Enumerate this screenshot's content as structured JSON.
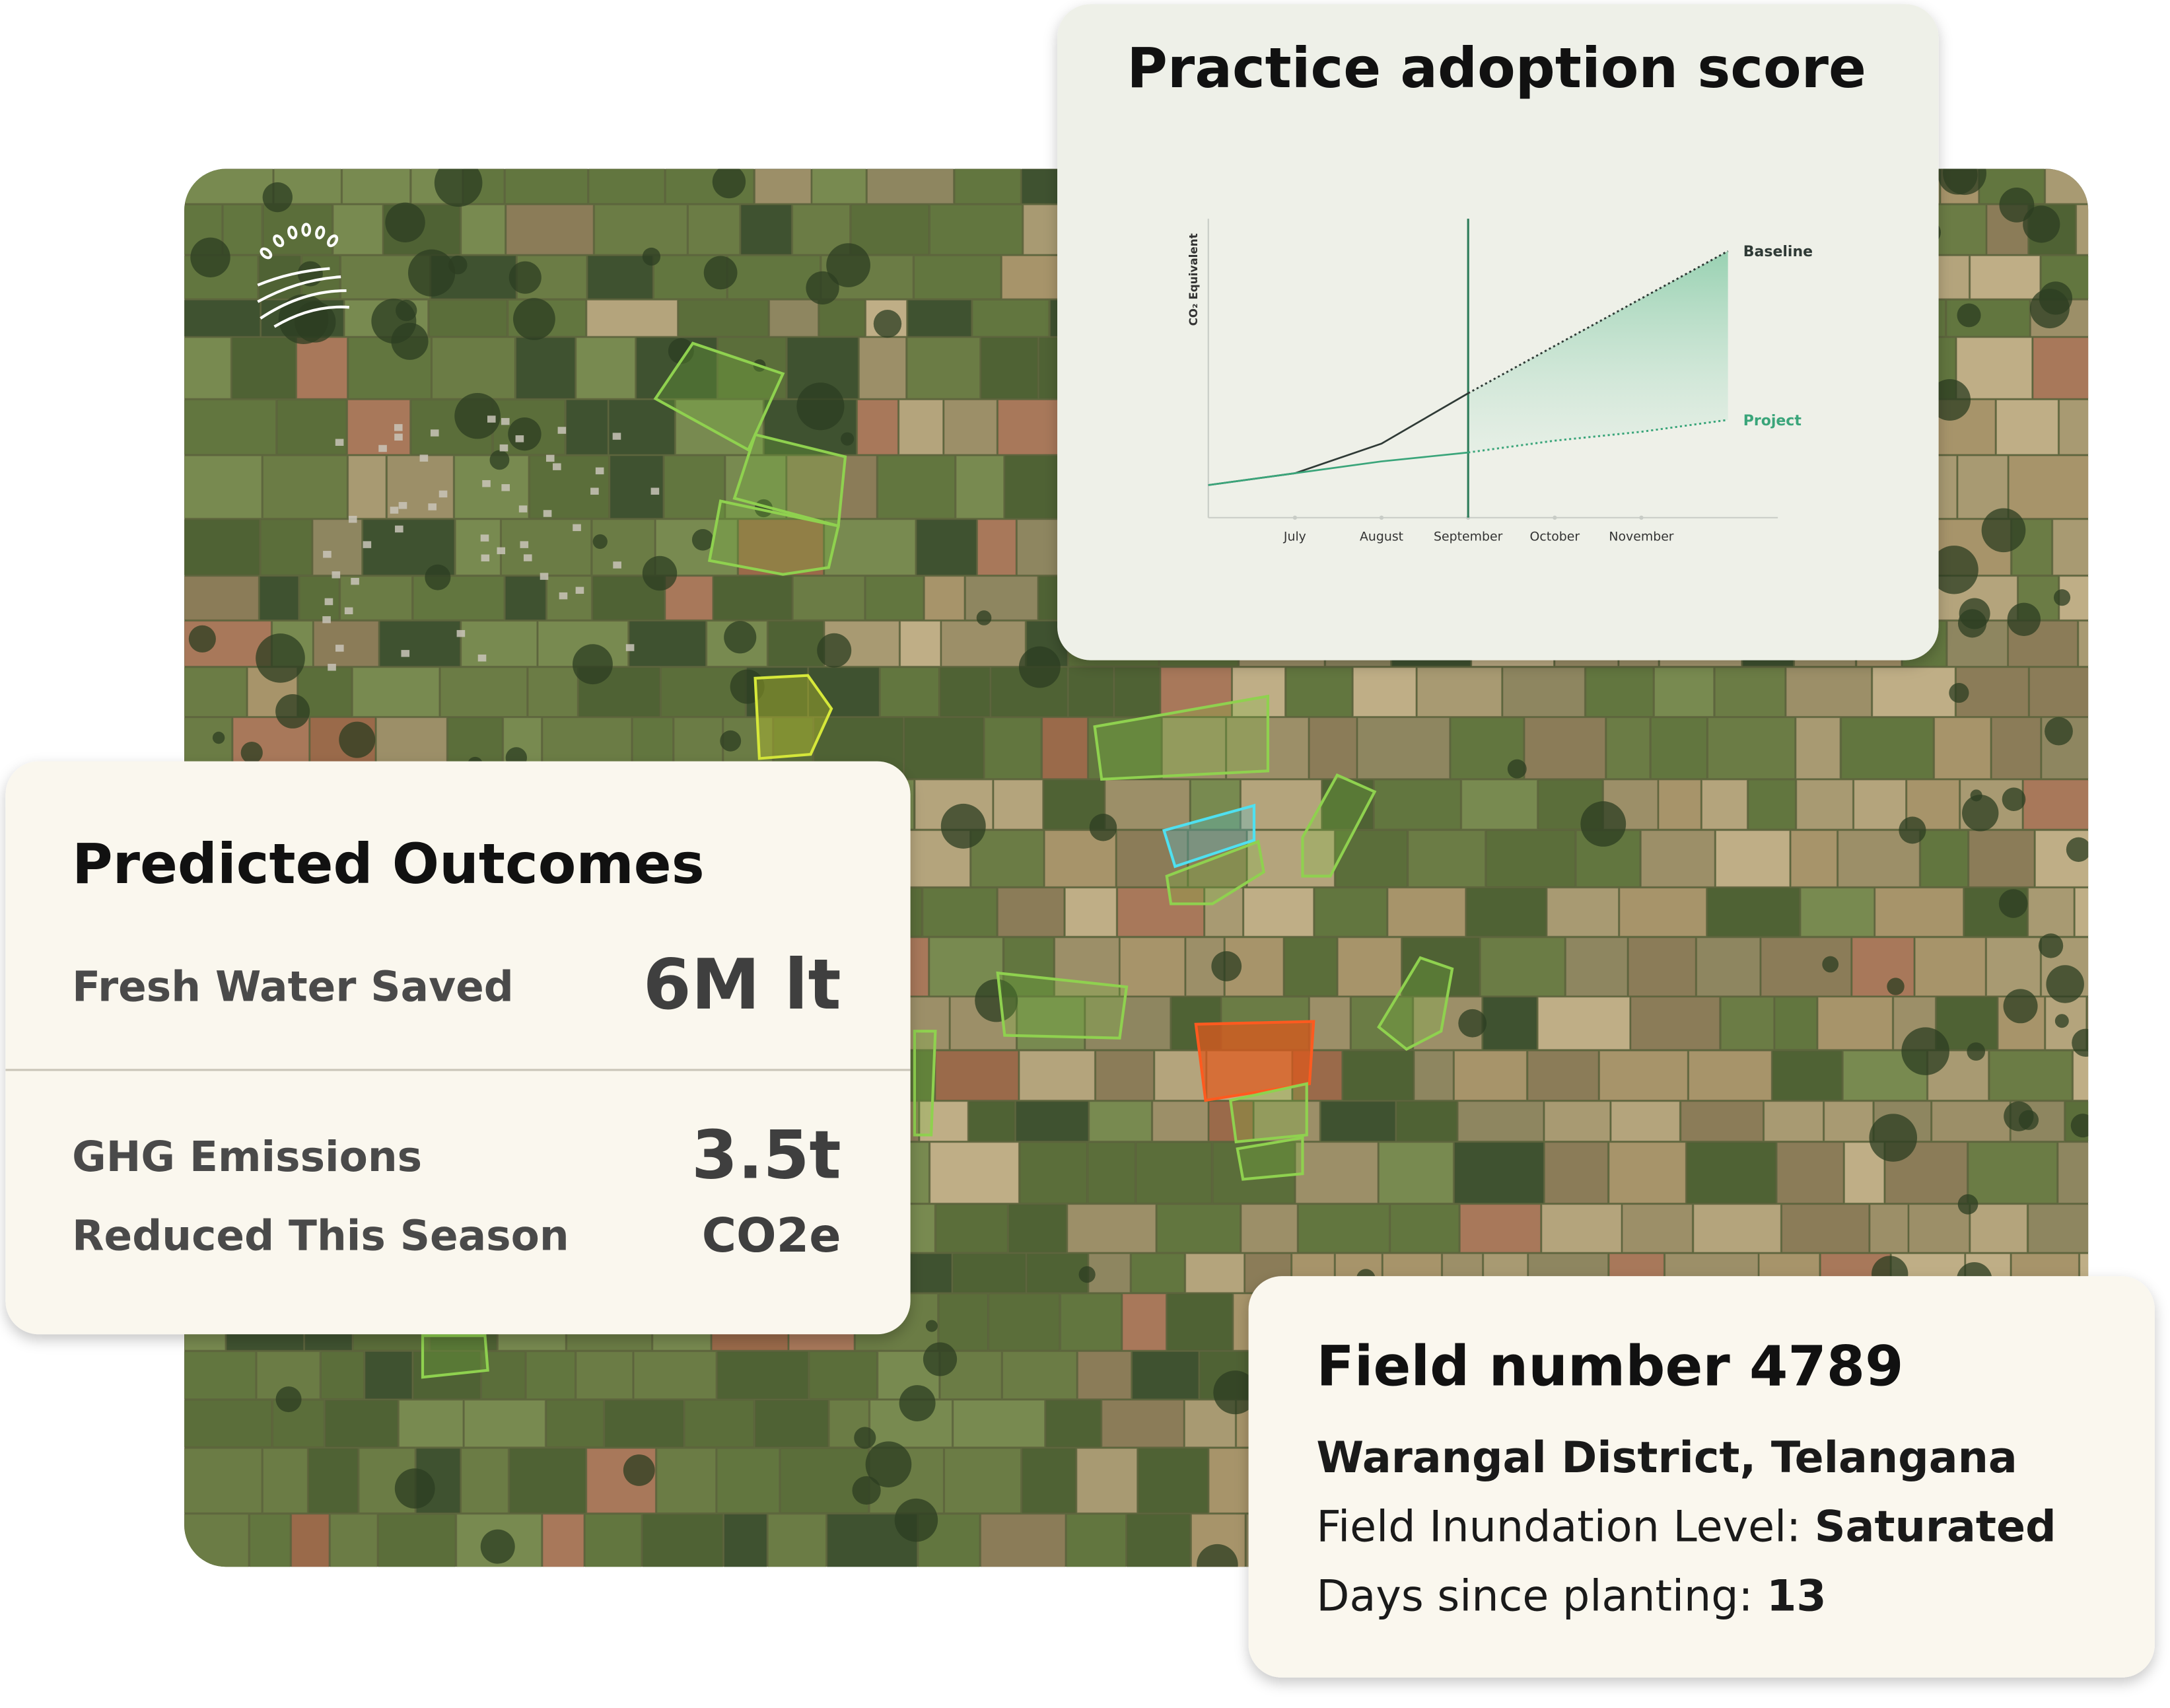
{
  "chart_data": {
    "type": "line",
    "title": "Practice adoption score",
    "y_label": "CO₂ Equivalent",
    "categories": [
      null,
      "July",
      "August",
      "September",
      "October",
      "November",
      null
    ],
    "series": [
      {
        "name": "Baseline",
        "color": "#2f3a36",
        "values": [
          11,
          15,
          25,
          42,
          58,
          74,
          90
        ]
      },
      {
        "name": "Project",
        "color": "#3aa57a",
        "values": [
          11,
          15,
          19,
          22,
          26,
          29,
          33
        ]
      }
    ],
    "ylim": [
      0,
      100
    ]
  },
  "predicted_outcomes": {
    "title": "Predicted Outcomes",
    "rows": [
      {
        "label": [
          "Fresh Water Saved"
        ],
        "value": [
          "6M lt"
        ]
      },
      {
        "label": [
          "GHG Emissions",
          "Reduced This Season"
        ],
        "value": [
          "3.5t",
          "CO2e"
        ]
      }
    ]
  },
  "field_card": {
    "title": "Field number 4789",
    "location": "Warangal District, Telangana",
    "details": [
      {
        "label": "Field Inundation Level: ",
        "value": "Saturated"
      },
      {
        "label": "Days since planting: ",
        "value": "13"
      }
    ]
  }
}
